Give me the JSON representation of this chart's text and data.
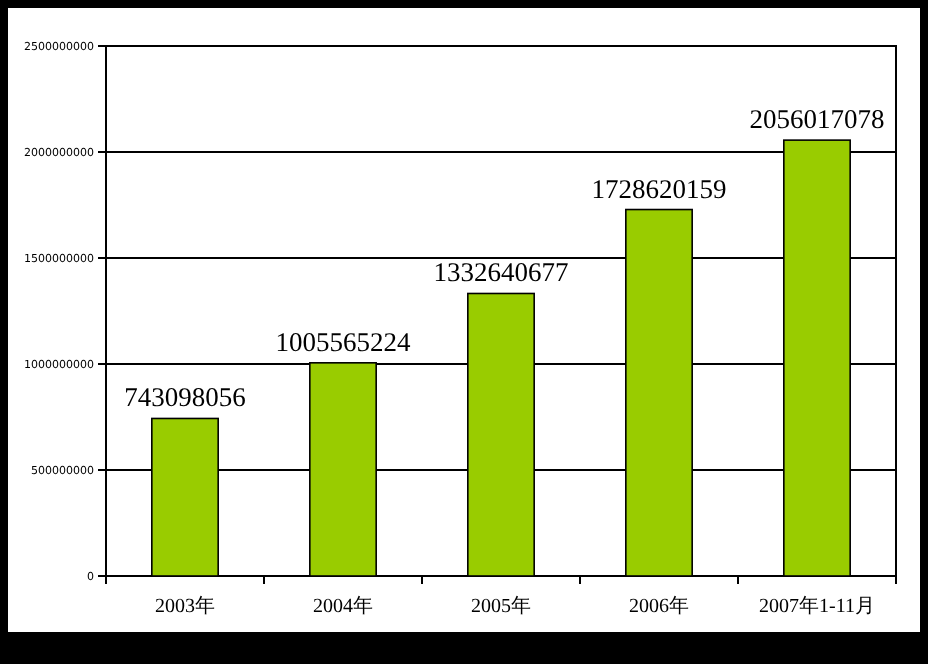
{
  "chart_data": {
    "type": "bar",
    "categories": [
      "2003年",
      "2004年",
      "2005年",
      "2006年",
      "2007年1-11月"
    ],
    "values": [
      743098056,
      1005565224,
      1332640677,
      1728620159,
      2056017078
    ],
    "color": "#99cc00",
    "ylim": [
      0,
      2500000000
    ],
    "yticks": [
      0,
      500000000,
      1000000000,
      1500000000,
      2000000000,
      2500000000
    ],
    "grid": "y",
    "data_labels": true
  }
}
